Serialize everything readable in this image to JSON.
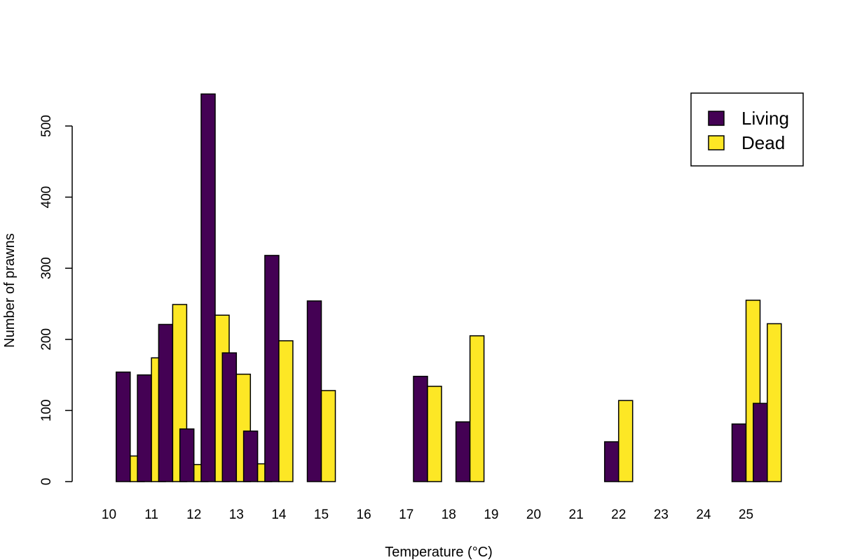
{
  "chart_data": {
    "type": "bar",
    "grouped": true,
    "title": "",
    "xlabel": "Temperature (°C)",
    "ylabel": "Number of prawns",
    "ylim": [
      0,
      550
    ],
    "yticks": [
      0,
      100,
      200,
      300,
      400,
      500
    ],
    "x_tick_labels": [
      "10",
      "11",
      "12",
      "13",
      "14",
      "15",
      "16",
      "17",
      "18",
      "19",
      "20",
      "21",
      "22",
      "23",
      "24",
      "25"
    ],
    "categories": [
      "10",
      "10.5",
      "11",
      "11.5",
      "12",
      "12.5",
      "13",
      "13.5",
      "14",
      "14.5",
      "15",
      "15.5",
      "16",
      "16.5",
      "17",
      "17.5",
      "18",
      "18.5",
      "19",
      "19.5",
      "20",
      "20.5",
      "21",
      "21.5",
      "22",
      "22.5",
      "23",
      "23.5",
      "24",
      "24.5",
      "25",
      "25.5"
    ],
    "series": [
      {
        "name": "Living",
        "color": "#440154",
        "values": [
          0,
          154,
          150,
          221,
          74,
          545,
          181,
          71,
          318,
          0,
          254,
          0,
          0,
          0,
          0,
          148,
          0,
          84,
          0,
          0,
          0,
          0,
          0,
          0,
          56,
          0,
          0,
          0,
          0,
          0,
          81,
          110
        ]
      },
      {
        "name": "Dead",
        "color": "#FDE725",
        "values": [
          0,
          36,
          174,
          249,
          24,
          234,
          151,
          25,
          198,
          0,
          128,
          0,
          0,
          0,
          0,
          134,
          0,
          205,
          0,
          0,
          0,
          0,
          0,
          0,
          114,
          0,
          0,
          0,
          0,
          0,
          255,
          222
        ]
      }
    ],
    "legend": {
      "position": "top-right",
      "entries": [
        "Living",
        "Dead"
      ]
    }
  }
}
